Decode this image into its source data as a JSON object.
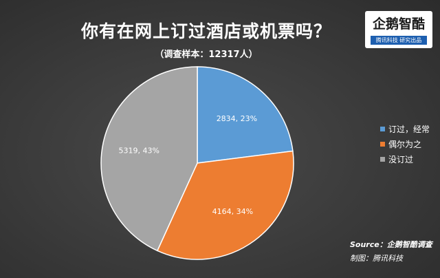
{
  "chart_data": {
    "type": "pie",
    "title": "你有在网上订过酒店或机票吗？",
    "subtitle": "（调查样本：12317人）",
    "categories": [
      "订过，经常",
      "偶尔为之",
      "没订过"
    ],
    "values": [
      2834,
      4164,
      5319
    ],
    "labels": [
      "2834, 23%",
      "4164, 34%",
      "5319, 43%"
    ],
    "colors": [
      "#5b9bd5",
      "#ed7d31",
      "#a5a5a5"
    ],
    "legend_position": "right"
  },
  "logo": {
    "main": "企鹅智酷",
    "sub": "腾讯科技  研究出品"
  },
  "footer": {
    "source": "Source：企鹅智酷调查",
    "credit": "制图：腾讯科技"
  }
}
